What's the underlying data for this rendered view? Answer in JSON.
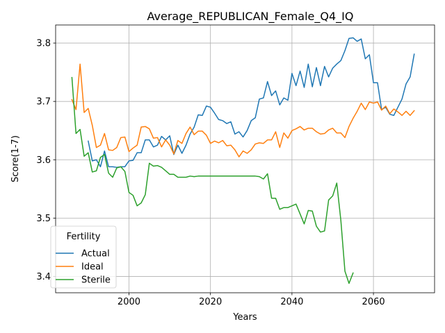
{
  "chart_data": {
    "type": "line",
    "title": "Average_REPUBLICAN_Female_Q4_IQ",
    "xlabel": "Years",
    "ylabel": "Score(1-7)",
    "xlim": [
      1982,
      2075
    ],
    "ylim": [
      3.372,
      3.831
    ],
    "xticks": [
      2000,
      2020,
      2040,
      2060
    ],
    "yticks": [
      3.4,
      3.5,
      3.6,
      3.7,
      3.8
    ],
    "grid": true,
    "legend": {
      "title": "Fertility",
      "placement": "lower-left"
    },
    "series": [
      {
        "name": "Actual",
        "color": "#1f77b4",
        "points": [
          [
            1990,
            3.632
          ],
          [
            1991,
            3.598
          ],
          [
            1992,
            3.6
          ],
          [
            1993,
            3.588
          ],
          [
            1994,
            3.615
          ],
          [
            1995,
            3.588
          ],
          [
            1996,
            3.588
          ],
          [
            1997,
            3.587
          ],
          [
            1998,
            3.588
          ],
          [
            1999,
            3.588
          ],
          [
            2000,
            3.598
          ],
          [
            2001,
            3.599
          ],
          [
            2002,
            3.612
          ],
          [
            2003,
            3.612
          ],
          [
            2004,
            3.634
          ],
          [
            2005,
            3.634
          ],
          [
            2006,
            3.622
          ],
          [
            2007,
            3.625
          ],
          [
            2008,
            3.64
          ],
          [
            2009,
            3.634
          ],
          [
            2010,
            3.641
          ],
          [
            2011,
            3.609
          ],
          [
            2012,
            3.625
          ],
          [
            2013,
            3.611
          ],
          [
            2014,
            3.625
          ],
          [
            2015,
            3.644
          ],
          [
            2016,
            3.656
          ],
          [
            2017,
            3.677
          ],
          [
            2018,
            3.676
          ],
          [
            2019,
            3.692
          ],
          [
            2020,
            3.69
          ],
          [
            2021,
            3.68
          ],
          [
            2022,
            3.669
          ],
          [
            2023,
            3.667
          ],
          [
            2024,
            3.662
          ],
          [
            2025,
            3.665
          ],
          [
            2026,
            3.644
          ],
          [
            2027,
            3.648
          ],
          [
            2028,
            3.639
          ],
          [
            2029,
            3.65
          ],
          [
            2030,
            3.667
          ],
          [
            2031,
            3.672
          ],
          [
            2032,
            3.704
          ],
          [
            2033,
            3.706
          ],
          [
            2034,
            3.734
          ],
          [
            2035,
            3.71
          ],
          [
            2036,
            3.718
          ],
          [
            2037,
            3.694
          ],
          [
            2038,
            3.706
          ],
          [
            2039,
            3.702
          ],
          [
            2040,
            3.748
          ],
          [
            2041,
            3.727
          ],
          [
            2042,
            3.752
          ],
          [
            2043,
            3.724
          ],
          [
            2044,
            3.764
          ],
          [
            2045,
            3.725
          ],
          [
            2046,
            3.758
          ],
          [
            2047,
            3.727
          ],
          [
            2048,
            3.76
          ],
          [
            2049,
            3.742
          ],
          [
            2050,
            3.757
          ],
          [
            2051,
            3.764
          ],
          [
            2052,
            3.77
          ],
          [
            2053,
            3.787
          ],
          [
            2054,
            3.808
          ],
          [
            2055,
            3.809
          ],
          [
            2056,
            3.803
          ],
          [
            2057,
            3.807
          ],
          [
            2058,
            3.773
          ],
          [
            2059,
            3.78
          ],
          [
            2060,
            3.732
          ],
          [
            2061,
            3.732
          ],
          [
            2062,
            3.686
          ],
          [
            2063,
            3.69
          ],
          [
            2064,
            3.678
          ],
          [
            2065,
            3.676
          ],
          [
            2066,
            3.69
          ],
          [
            2067,
            3.704
          ],
          [
            2068,
            3.73
          ],
          [
            2069,
            3.742
          ],
          [
            2070,
            3.781
          ]
        ]
      },
      {
        "name": "Ideal",
        "color": "#ff7f0e",
        "points": [
          [
            1986,
            3.703
          ],
          [
            1987,
            3.686
          ],
          [
            1988,
            3.764
          ],
          [
            1989,
            3.681
          ],
          [
            1990,
            3.688
          ],
          [
            1991,
            3.659
          ],
          [
            1992,
            3.621
          ],
          [
            1993,
            3.625
          ],
          [
            1994,
            3.645
          ],
          [
            1995,
            3.617
          ],
          [
            1996,
            3.616
          ],
          [
            1997,
            3.621
          ],
          [
            1998,
            3.638
          ],
          [
            1999,
            3.639
          ],
          [
            2000,
            3.614
          ],
          [
            2001,
            3.62
          ],
          [
            2002,
            3.625
          ],
          [
            2003,
            3.656
          ],
          [
            2004,
            3.657
          ],
          [
            2005,
            3.653
          ],
          [
            2006,
            3.637
          ],
          [
            2007,
            3.638
          ],
          [
            2008,
            3.622
          ],
          [
            2009,
            3.634
          ],
          [
            2010,
            3.625
          ],
          [
            2011,
            3.61
          ],
          [
            2012,
            3.633
          ],
          [
            2013,
            3.628
          ],
          [
            2014,
            3.645
          ],
          [
            2015,
            3.656
          ],
          [
            2016,
            3.643
          ],
          [
            2017,
            3.649
          ],
          [
            2018,
            3.649
          ],
          [
            2019,
            3.642
          ],
          [
            2020,
            3.628
          ],
          [
            2021,
            3.632
          ],
          [
            2022,
            3.629
          ],
          [
            2023,
            3.633
          ],
          [
            2024,
            3.624
          ],
          [
            2025,
            3.625
          ],
          [
            2026,
            3.617
          ],
          [
            2027,
            3.605
          ],
          [
            2028,
            3.615
          ],
          [
            2029,
            3.611
          ],
          [
            2030,
            3.617
          ],
          [
            2031,
            3.627
          ],
          [
            2032,
            3.629
          ],
          [
            2033,
            3.628
          ],
          [
            2034,
            3.634
          ],
          [
            2035,
            3.634
          ],
          [
            2036,
            3.648
          ],
          [
            2037,
            3.621
          ],
          [
            2038,
            3.646
          ],
          [
            2039,
            3.637
          ],
          [
            2040,
            3.65
          ],
          [
            2041,
            3.653
          ],
          [
            2042,
            3.657
          ],
          [
            2043,
            3.651
          ],
          [
            2044,
            3.654
          ],
          [
            2045,
            3.654
          ],
          [
            2046,
            3.648
          ],
          [
            2047,
            3.644
          ],
          [
            2048,
            3.645
          ],
          [
            2049,
            3.651
          ],
          [
            2050,
            3.654
          ],
          [
            2051,
            3.646
          ],
          [
            2052,
            3.646
          ],
          [
            2053,
            3.638
          ],
          [
            2054,
            3.657
          ],
          [
            2055,
            3.671
          ],
          [
            2056,
            3.683
          ],
          [
            2057,
            3.697
          ],
          [
            2058,
            3.686
          ],
          [
            2059,
            3.699
          ],
          [
            2060,
            3.697
          ],
          [
            2061,
            3.699
          ],
          [
            2062,
            3.685
          ],
          [
            2063,
            3.692
          ],
          [
            2064,
            3.679
          ],
          [
            2065,
            3.687
          ],
          [
            2066,
            3.682
          ],
          [
            2067,
            3.676
          ],
          [
            2068,
            3.683
          ],
          [
            2069,
            3.676
          ],
          [
            2070,
            3.684
          ]
        ]
      },
      {
        "name": "Sterile",
        "color": "#2ca02c",
        "points": [
          [
            1986,
            3.741
          ],
          [
            1987,
            3.645
          ],
          [
            1988,
            3.652
          ],
          [
            1989,
            3.606
          ],
          [
            1990,
            3.612
          ],
          [
            1991,
            3.579
          ],
          [
            1992,
            3.581
          ],
          [
            1993,
            3.604
          ],
          [
            1994,
            3.609
          ],
          [
            1995,
            3.577
          ],
          [
            1996,
            3.57
          ],
          [
            1997,
            3.586
          ],
          [
            1998,
            3.588
          ],
          [
            1999,
            3.58
          ],
          [
            2000,
            3.544
          ],
          [
            2001,
            3.539
          ],
          [
            2002,
            3.521
          ],
          [
            2003,
            3.526
          ],
          [
            2004,
            3.54
          ],
          [
            2005,
            3.594
          ],
          [
            2006,
            3.589
          ],
          [
            2007,
            3.59
          ],
          [
            2008,
            3.587
          ],
          [
            2009,
            3.581
          ],
          [
            2010,
            3.575
          ],
          [
            2011,
            3.575
          ],
          [
            2012,
            3.57
          ],
          [
            2013,
            3.57
          ],
          [
            2014,
            3.57
          ],
          [
            2015,
            3.572
          ],
          [
            2016,
            3.571
          ],
          [
            2017,
            3.572
          ],
          [
            2018,
            3.572
          ],
          [
            2019,
            3.572
          ],
          [
            2020,
            3.572
          ],
          [
            2021,
            3.572
          ],
          [
            2022,
            3.572
          ],
          [
            2023,
            3.572
          ],
          [
            2024,
            3.572
          ],
          [
            2025,
            3.572
          ],
          [
            2026,
            3.572
          ],
          [
            2027,
            3.572
          ],
          [
            2028,
            3.572
          ],
          [
            2029,
            3.572
          ],
          [
            2030,
            3.572
          ],
          [
            2031,
            3.572
          ],
          [
            2032,
            3.571
          ],
          [
            2033,
            3.567
          ],
          [
            2034,
            3.576
          ],
          [
            2035,
            3.534
          ],
          [
            2036,
            3.534
          ],
          [
            2037,
            3.515
          ],
          [
            2038,
            3.518
          ],
          [
            2039,
            3.518
          ],
          [
            2040,
            3.521
          ],
          [
            2041,
            3.524
          ],
          [
            2042,
            3.507
          ],
          [
            2043,
            3.49
          ],
          [
            2044,
            3.513
          ],
          [
            2045,
            3.512
          ],
          [
            2046,
            3.486
          ],
          [
            2047,
            3.476
          ],
          [
            2048,
            3.478
          ],
          [
            2049,
            3.531
          ],
          [
            2050,
            3.538
          ],
          [
            2051,
            3.56
          ],
          [
            2052,
            3.496
          ],
          [
            2053,
            3.409
          ],
          [
            2054,
            3.388
          ],
          [
            2055,
            3.406
          ]
        ]
      }
    ]
  }
}
